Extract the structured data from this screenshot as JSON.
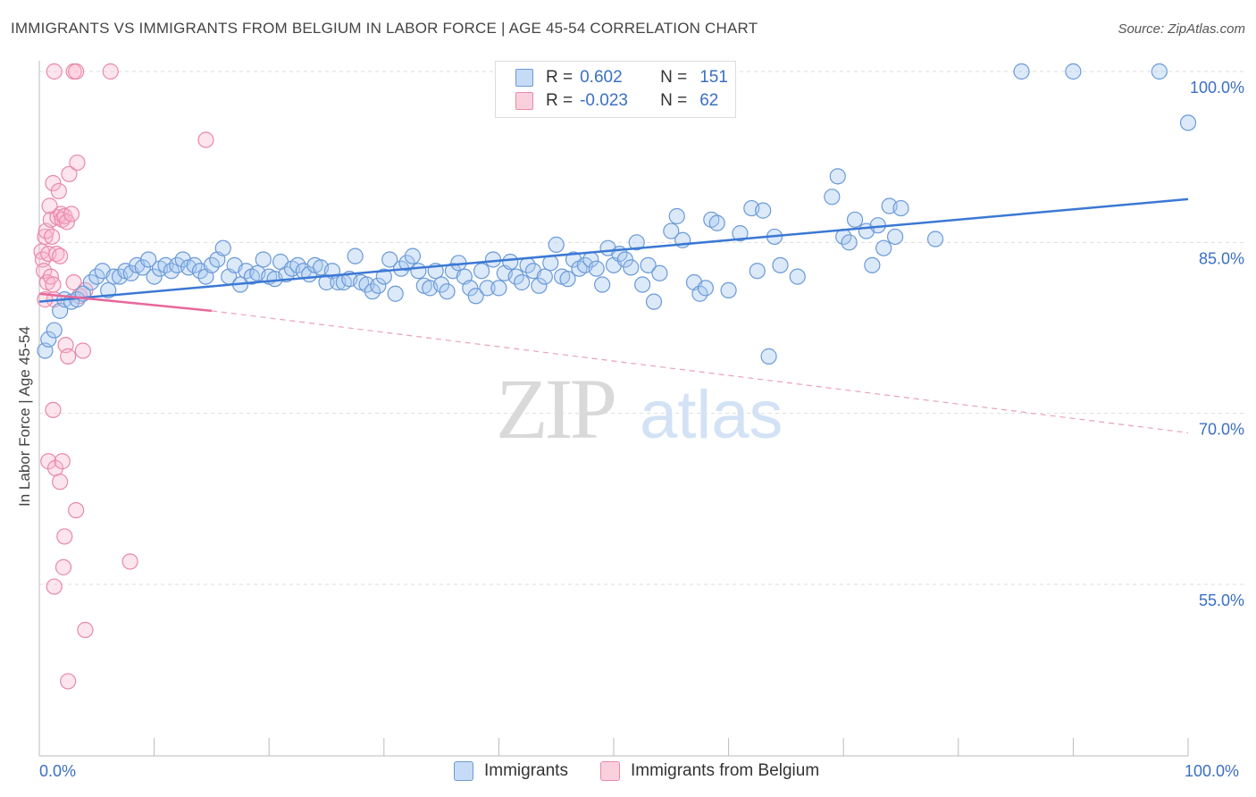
{
  "title": "IMMIGRANTS VS IMMIGRANTS FROM BELGIUM IN LABOR FORCE | AGE 45-54 CORRELATION CHART",
  "source": "Source: ZipAtlas.com",
  "watermark": {
    "zip": "ZIP",
    "atlas": "atlas"
  },
  "legend": {
    "r_label": "R =",
    "n_label": "N =",
    "rows": [
      {
        "r": "0.602",
        "n": "151",
        "color": "#a8c8f0",
        "stroke": "#6a9ad8"
      },
      {
        "r": "-0.023",
        "n": "62",
        "color": "#f8bcd0",
        "stroke": "#e889a8"
      }
    ]
  },
  "bottom_legend": [
    {
      "label": "Immigrants",
      "color": "#c6dbf5",
      "stroke": "#6a9ad8"
    },
    {
      "label": "Immigrants from Belgium",
      "color": "#fbd0dd",
      "stroke": "#e889a8"
    }
  ],
  "colors": {
    "blue": "#3b78d4",
    "pink": "#e8689a",
    "label_blue": "#3b6fc4",
    "grid": "#dddddd"
  },
  "chart_data": {
    "type": "scatter",
    "title": "IMMIGRANTS VS IMMIGRANTS FROM BELGIUM IN LABOR FORCE | AGE 45-54 CORRELATION CHART",
    "xlabel": "",
    "ylabel": "In Labor Force | Age 45-54",
    "xlim": [
      0,
      100
    ],
    "ylim": [
      43,
      104
    ],
    "x_tick_labels": [
      "0.0%",
      "100.0%"
    ],
    "y_tick_labels": [
      "100.0%",
      "85.0%",
      "70.0%",
      "55.0%"
    ],
    "y_ticks": [
      100,
      85,
      70,
      55
    ],
    "grid": true,
    "series": [
      {
        "name": "Immigrants",
        "trend": {
          "x0": 0,
          "y0": 79.8,
          "x1": 100,
          "y1": 88.8
        },
        "points": [
          [
            0.5,
            75.5
          ],
          [
            0.8,
            76.5
          ],
          [
            1.3,
            77.3
          ],
          [
            1.8,
            79
          ],
          [
            2.2,
            80
          ],
          [
            2.8,
            79.8
          ],
          [
            3.3,
            80
          ],
          [
            3.8,
            80.5
          ],
          [
            4.5,
            81.5
          ],
          [
            5,
            82
          ],
          [
            5.5,
            82.5
          ],
          [
            6,
            80.8
          ],
          [
            6.5,
            82
          ],
          [
            7,
            82
          ],
          [
            7.5,
            82.5
          ],
          [
            8,
            82.3
          ],
          [
            8.5,
            83
          ],
          [
            9,
            82.8
          ],
          [
            9.5,
            83.5
          ],
          [
            10,
            82
          ],
          [
            10.5,
            82.7
          ],
          [
            11,
            83
          ],
          [
            11.5,
            82.5
          ],
          [
            12,
            83
          ],
          [
            12.5,
            83.5
          ],
          [
            13,
            82.8
          ],
          [
            13.5,
            83
          ],
          [
            14,
            82.5
          ],
          [
            14.5,
            82
          ],
          [
            15,
            83
          ],
          [
            15.5,
            83.5
          ],
          [
            16,
            84.5
          ],
          [
            16.5,
            82
          ],
          [
            17,
            83
          ],
          [
            17.5,
            81.3
          ],
          [
            18,
            82.5
          ],
          [
            18.5,
            82
          ],
          [
            19,
            82.3
          ],
          [
            19.5,
            83.5
          ],
          [
            20,
            82
          ],
          [
            20.5,
            81.8
          ],
          [
            21,
            83.3
          ],
          [
            21.5,
            82.2
          ],
          [
            22,
            82.7
          ],
          [
            22.5,
            83
          ],
          [
            23,
            82.5
          ],
          [
            23.5,
            82.2
          ],
          [
            24,
            83
          ],
          [
            24.5,
            82.8
          ],
          [
            25,
            81.5
          ],
          [
            25.5,
            82.5
          ],
          [
            26,
            81.5
          ],
          [
            26.5,
            81.5
          ],
          [
            27,
            81.8
          ],
          [
            27.5,
            83.8
          ],
          [
            28,
            81.5
          ],
          [
            28.5,
            81.3
          ],
          [
            29,
            80.7
          ],
          [
            29.5,
            81.2
          ],
          [
            30,
            82
          ],
          [
            30.5,
            83.5
          ],
          [
            31,
            80.5
          ],
          [
            31.5,
            82.7
          ],
          [
            32,
            83.2
          ],
          [
            32.5,
            83.8
          ],
          [
            33,
            82.5
          ],
          [
            33.5,
            81.2
          ],
          [
            34,
            81
          ],
          [
            34.5,
            82.5
          ],
          [
            35,
            81.3
          ],
          [
            35.5,
            80.7
          ],
          [
            36,
            82.5
          ],
          [
            36.5,
            83.2
          ],
          [
            37,
            82
          ],
          [
            37.5,
            81
          ],
          [
            38,
            80.3
          ],
          [
            38.5,
            82.5
          ],
          [
            39,
            81
          ],
          [
            39.5,
            83.5
          ],
          [
            40,
            81
          ],
          [
            40.5,
            82.3
          ],
          [
            41,
            83.3
          ],
          [
            41.5,
            82
          ],
          [
            42,
            81.5
          ],
          [
            42.5,
            83
          ],
          [
            43,
            82.5
          ],
          [
            43.5,
            81.2
          ],
          [
            44,
            82
          ],
          [
            44.5,
            83.2
          ],
          [
            45,
            84.8
          ],
          [
            45.5,
            82
          ],
          [
            46,
            81.8
          ],
          [
            46.5,
            83.5
          ],
          [
            47,
            82.7
          ],
          [
            47.5,
            83
          ],
          [
            48,
            83.5
          ],
          [
            48.5,
            82.7
          ],
          [
            49,
            81.3
          ],
          [
            49.5,
            84.5
          ],
          [
            50,
            83
          ],
          [
            50.5,
            84
          ],
          [
            51,
            83.5
          ],
          [
            51.5,
            82.8
          ],
          [
            52,
            85
          ],
          [
            52.5,
            81.3
          ],
          [
            53,
            83
          ],
          [
            53.5,
            79.8
          ],
          [
            54,
            82.3
          ],
          [
            55,
            86
          ],
          [
            55.5,
            87.3
          ],
          [
            56,
            85.2
          ],
          [
            57,
            81.5
          ],
          [
            57.5,
            80.5
          ],
          [
            58,
            81
          ],
          [
            58.5,
            87
          ],
          [
            59,
            86.7
          ],
          [
            60,
            80.8
          ],
          [
            61,
            85.8
          ],
          [
            62,
            88
          ],
          [
            62.5,
            82.5
          ],
          [
            63,
            87.8
          ],
          [
            64,
            85.5
          ],
          [
            64.5,
            83
          ],
          [
            66,
            82
          ],
          [
            69,
            89
          ],
          [
            69.5,
            90.8
          ],
          [
            70,
            85.5
          ],
          [
            70.5,
            85
          ],
          [
            71,
            87
          ],
          [
            72,
            86
          ],
          [
            72.5,
            83
          ],
          [
            73,
            86.5
          ],
          [
            73.5,
            84.5
          ],
          [
            74,
            88.2
          ],
          [
            74.5,
            85.5
          ],
          [
            75,
            88
          ],
          [
            78,
            85.3
          ],
          [
            63.5,
            75
          ],
          [
            85.5,
            100
          ],
          [
            90,
            100
          ],
          [
            97.5,
            100
          ],
          [
            100,
            95.5
          ]
        ]
      },
      {
        "name": "Immigrants from Belgium",
        "trend_solid": {
          "x0": 0,
          "y0": 80.5,
          "x1": 15,
          "y1": 79.0
        },
        "trend_dashed": {
          "x0": 15,
          "y0": 79.0,
          "x1": 100,
          "y1": 68.3
        },
        "points": [
          [
            0.2,
            84.2
          ],
          [
            0.3,
            83.5
          ],
          [
            0.4,
            82.5
          ],
          [
            0.5,
            85.5
          ],
          [
            0.6,
            86
          ],
          [
            0.7,
            81.5
          ],
          [
            0.8,
            84
          ],
          [
            0.9,
            88.2
          ],
          [
            1,
            87
          ],
          [
            1.1,
            85.5
          ],
          [
            1.2,
            90.2
          ],
          [
            1.3,
            80
          ],
          [
            1.5,
            84
          ],
          [
            1.6,
            87.2
          ],
          [
            1.7,
            89.5
          ],
          [
            1.8,
            83.8
          ],
          [
            1.9,
            87.5
          ],
          [
            2,
            87
          ],
          [
            2.2,
            87.3
          ],
          [
            2.4,
            86.8
          ],
          [
            2.6,
            91
          ],
          [
            2.8,
            87.5
          ],
          [
            3.3,
            92
          ],
          [
            1,
            82
          ],
          [
            1.2,
            81.3
          ],
          [
            0.5,
            80
          ],
          [
            3,
            81.5
          ],
          [
            3.5,
            80.3
          ],
          [
            4,
            80.8
          ],
          [
            2.3,
            76
          ],
          [
            2.5,
            75
          ],
          [
            3.8,
            75.5
          ],
          [
            1.2,
            70.3
          ],
          [
            0.8,
            65.8
          ],
          [
            1.4,
            65.2
          ],
          [
            1.8,
            64
          ],
          [
            2,
            65.8
          ],
          [
            3.2,
            61.5
          ],
          [
            2.2,
            59.2
          ],
          [
            2.1,
            56.5
          ],
          [
            1.3,
            54.8
          ],
          [
            4,
            51
          ],
          [
            2.5,
            46.5
          ],
          [
            7.9,
            57
          ],
          [
            14.5,
            94
          ],
          [
            1.3,
            100
          ],
          [
            3,
            100
          ],
          [
            3.2,
            100
          ],
          [
            6.2,
            100
          ]
        ]
      }
    ]
  }
}
